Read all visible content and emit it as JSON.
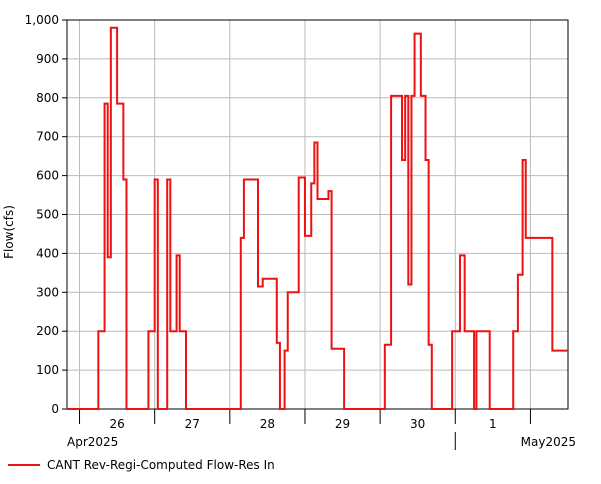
{
  "colors": {
    "series": "#ee1111",
    "grid": "#bbbbbb",
    "axis": "#000000",
    "background": "#ffffff"
  },
  "chart_data": {
    "type": "line",
    "step": true,
    "title": "",
    "xlabel": "",
    "ylabel": "Flow(cfs)",
    "ylim": [
      0,
      1000
    ],
    "yticks": [
      0,
      100,
      200,
      300,
      400,
      500,
      600,
      700,
      800,
      900,
      1000
    ],
    "ytick_labels": [
      "0",
      "100",
      "200",
      "300",
      "400",
      "500",
      "600",
      "700",
      "800",
      "900",
      "1,000"
    ],
    "xlim": [
      "2025-04-25T20:00",
      "2025-05-02T12:00"
    ],
    "day_labels": [
      {
        "date": "2025-04-26",
        "label": "26"
      },
      {
        "date": "2025-04-27",
        "label": "27"
      },
      {
        "date": "2025-04-28",
        "label": "28"
      },
      {
        "date": "2025-04-29",
        "label": "29"
      },
      {
        "date": "2025-04-30",
        "label": "30"
      },
      {
        "date": "2025-05-01",
        "label": "1"
      }
    ],
    "month_labels": [
      "Apr2025",
      "May2025"
    ],
    "grid": true,
    "legend_position": "bottom-left",
    "series": [
      {
        "name": "CANT Rev-Regi-Computed Flow-Res In",
        "points": [
          [
            "2025-04-25T20:00",
            0
          ],
          [
            "2025-04-26T06:00",
            200
          ],
          [
            "2025-04-26T08:00",
            785
          ],
          [
            "2025-04-26T09:00",
            390
          ],
          [
            "2025-04-26T10:00",
            980
          ],
          [
            "2025-04-26T12:00",
            785
          ],
          [
            "2025-04-26T14:00",
            590
          ],
          [
            "2025-04-26T15:00",
            0
          ],
          [
            "2025-04-26T22:00",
            200
          ],
          [
            "2025-04-27T00:00",
            590
          ],
          [
            "2025-04-27T01:00",
            0
          ],
          [
            "2025-04-27T04:00",
            590
          ],
          [
            "2025-04-27T05:00",
            200
          ],
          [
            "2025-04-27T07:00",
            395
          ],
          [
            "2025-04-27T08:00",
            200
          ],
          [
            "2025-04-27T10:00",
            0
          ],
          [
            "2025-04-28T03:30",
            440
          ],
          [
            "2025-04-28T04:30",
            590
          ],
          [
            "2025-04-28T09:00",
            315
          ],
          [
            "2025-04-28T10:30",
            335
          ],
          [
            "2025-04-28T15:00",
            170
          ],
          [
            "2025-04-28T16:00",
            0
          ],
          [
            "2025-04-28T17:30",
            150
          ],
          [
            "2025-04-28T18:30",
            300
          ],
          [
            "2025-04-28T22:00",
            595
          ],
          [
            "2025-04-29T00:00",
            445
          ],
          [
            "2025-04-29T02:00",
            580
          ],
          [
            "2025-04-29T03:00",
            685
          ],
          [
            "2025-04-29T04:00",
            540
          ],
          [
            "2025-04-29T07:30",
            560
          ],
          [
            "2025-04-29T08:30",
            155
          ],
          [
            "2025-04-29T12:30",
            0
          ],
          [
            "2025-04-30T01:30",
            165
          ],
          [
            "2025-04-30T03:30",
            805
          ],
          [
            "2025-04-30T07:00",
            640
          ],
          [
            "2025-04-30T08:00",
            805
          ],
          [
            "2025-04-30T09:00",
            320
          ],
          [
            "2025-04-30T10:00",
            805
          ],
          [
            "2025-04-30T11:00",
            965
          ],
          [
            "2025-04-30T13:00",
            805
          ],
          [
            "2025-04-30T14:30",
            640
          ],
          [
            "2025-04-30T15:30",
            165
          ],
          [
            "2025-04-30T16:30",
            0
          ],
          [
            "2025-04-30T23:00",
            200
          ],
          [
            "2025-05-01T01:30",
            395
          ],
          [
            "2025-05-01T03:00",
            200
          ],
          [
            "2025-05-01T06:00",
            0
          ],
          [
            "2025-05-01T06:45",
            200
          ],
          [
            "2025-05-01T11:00",
            0
          ],
          [
            "2025-05-01T18:30",
            200
          ],
          [
            "2025-05-01T20:00",
            345
          ],
          [
            "2025-05-01T21:30",
            640
          ],
          [
            "2025-05-01T22:30",
            440
          ],
          [
            "2025-05-02T07:00",
            150
          ],
          [
            "2025-05-02T12:00",
            150
          ]
        ]
      }
    ]
  }
}
